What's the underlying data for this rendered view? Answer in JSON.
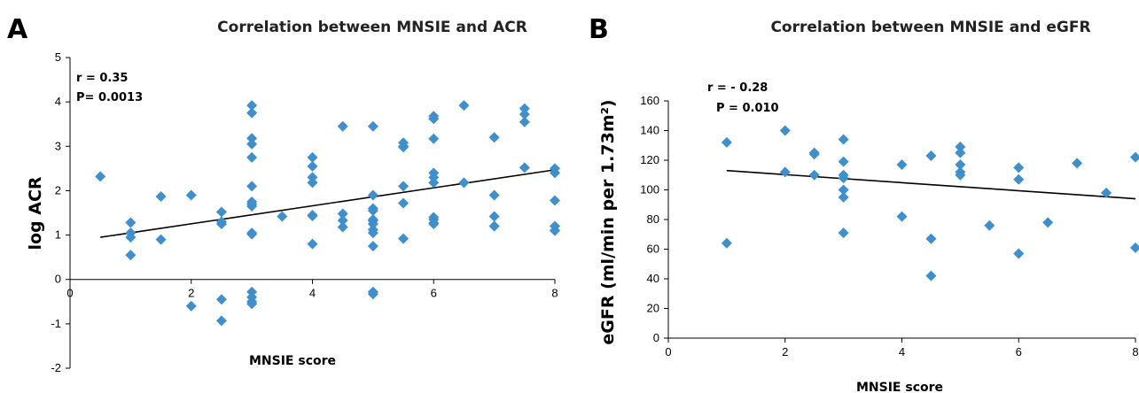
{
  "colors": {
    "point": "#3E8FCC",
    "trend": "#000000",
    "axis": "#000000"
  },
  "chart_data": [
    {
      "type": "scatter",
      "panel": "A",
      "title": "Correlation between MNSIE and ACR",
      "xlabel": "MNSIE score",
      "ylabel": "log ACR",
      "xlim": [
        0,
        8
      ],
      "ylim": [
        -2,
        5
      ],
      "xticks": [
        "0",
        "2",
        "4",
        "6",
        "8"
      ],
      "yticks": [
        "-2",
        "-1",
        "0",
        "1",
        "2",
        "3",
        "4",
        "5"
      ],
      "annotation": [
        "r = 0.35",
        "P= 0.0013"
      ],
      "trendline": [
        [
          0.5,
          0.95
        ],
        [
          8,
          2.47
        ]
      ],
      "x": [
        0.5,
        1,
        1,
        1,
        1,
        1.5,
        1.5,
        2,
        2,
        2.5,
        2.5,
        2.5,
        2.5,
        2.5,
        3,
        3,
        3,
        3,
        3,
        3,
        3,
        3,
        3,
        3,
        3,
        3,
        3,
        3,
        3,
        3.5,
        4,
        4,
        4,
        4,
        4,
        4,
        4,
        4.5,
        4.5,
        4.5,
        4.5,
        5,
        5,
        5,
        5,
        5,
        5,
        5,
        5,
        5,
        5,
        5,
        5,
        5.5,
        5.5,
        5.5,
        5.5,
        5.5,
        5.5,
        6,
        6,
        6,
        6,
        6,
        6,
        6,
        6,
        6,
        6,
        6.5,
        6.5,
        7,
        7,
        7,
        7,
        7,
        7.5,
        7.5,
        7.5,
        7.5,
        8,
        8,
        8,
        8,
        8,
        8
      ],
      "y": [
        2.32,
        1.28,
        1.05,
        0.95,
        0.55,
        1.87,
        0.9,
        1.9,
        -0.6,
        1.52,
        1.3,
        1.25,
        -0.45,
        -0.93,
        3.92,
        3.75,
        3.18,
        3.05,
        2.75,
        2.1,
        1.75,
        1.7,
        1.65,
        1.02,
        1.05,
        -0.28,
        -0.4,
        -0.5,
        -0.55,
        1.42,
        2.75,
        2.55,
        2.3,
        2.18,
        1.43,
        1.45,
        0.8,
        3.45,
        1.48,
        1.33,
        1.18,
        3.45,
        1.9,
        1.55,
        1.6,
        1.35,
        1.32,
        1.25,
        1.12,
        1.05,
        0.75,
        -0.28,
        -0.33,
        3.08,
        2.98,
        2.1,
        1.72,
        0.92,
        3.0,
        3.68,
        3.62,
        3.17,
        2.4,
        2.3,
        2.18,
        1.4,
        1.35,
        1.27,
        1.25,
        3.92,
        2.18,
        3.2,
        1.9,
        1.42,
        1.2,
        1.2,
        3.85,
        3.72,
        3.55,
        2.52,
        2.5,
        2.4,
        1.78,
        1.2,
        1.1,
        1.1
      ]
    },
    {
      "type": "scatter",
      "panel": "B",
      "title": "Correlation between MNSIE and eGFR",
      "xlabel": "MNSIE score",
      "ylabel": "eGFR  (ml/min per 1.73m²)",
      "xlim": [
        0,
        8
      ],
      "ylim": [
        0,
        160
      ],
      "xticks": [
        "0",
        "2",
        "4",
        "6",
        "8"
      ],
      "yticks": [
        "0",
        "20",
        "40",
        "60",
        "80",
        "100",
        "120",
        "140",
        "160"
      ],
      "annotation": [
        "r = - 0.28",
        "P = 0.010"
      ],
      "trendline": [
        [
          1,
          113
        ],
        [
          8,
          94
        ]
      ],
      "x": [
        1,
        1,
        2,
        2,
        2.5,
        2.5,
        2.5,
        3,
        3,
        3,
        3,
        3,
        3,
        3,
        4,
        4,
        4.5,
        4.5,
        4.5,
        5,
        5,
        5,
        5,
        5,
        5.5,
        6,
        6,
        6,
        6.5,
        7,
        7.5,
        8,
        8
      ],
      "y": [
        132,
        64,
        140,
        112,
        125,
        124,
        110,
        134,
        119,
        108,
        100,
        95,
        71,
        110,
        117,
        82,
        123,
        67,
        42,
        129,
        125,
        117,
        112,
        110,
        76,
        115,
        107,
        57,
        78,
        118,
        98,
        122,
        61
      ]
    }
  ]
}
